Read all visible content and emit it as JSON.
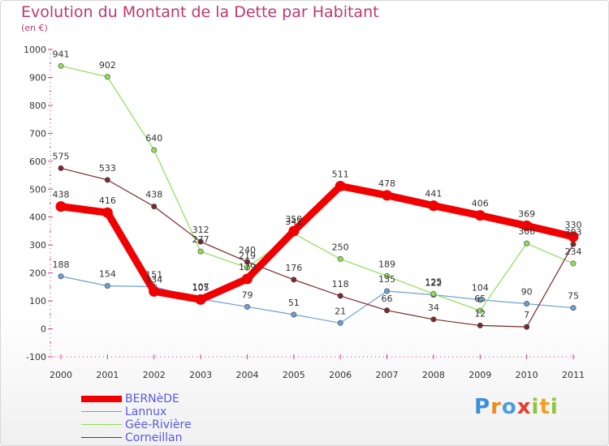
{
  "header": {
    "title": "Evolution du Montant de la Dette par Habitant",
    "subtitle": "(en €)"
  },
  "logo": {
    "text": "Proxiti",
    "colors": [
      "#3a8fd8",
      "#f08a1c",
      "#4a9ede",
      "#e83e2c",
      "#8cc63e",
      "#f0a020"
    ]
  },
  "chart_data": {
    "type": "line",
    "title": "Evolution du Montant de la Dette par Habitant",
    "ylabel": "(en €)",
    "xlabel": "",
    "x": [
      "2000",
      "2001",
      "2002",
      "2003",
      "2004",
      "2005",
      "2006",
      "2007",
      "2008",
      "2009",
      "2010",
      "2011"
    ],
    "yticks": [
      "-100",
      "0",
      "100",
      "200",
      "300",
      "400",
      "500",
      "600",
      "700",
      "800",
      "900",
      "1000"
    ],
    "ylim": [
      -100,
      1000
    ],
    "grid": false,
    "legend_position": "bottom-left",
    "series": [
      {
        "name": "BERNèDE",
        "color": "#f00000",
        "emphasis": true,
        "values": [
          438,
          416,
          134,
          105,
          179,
          350,
          511,
          478,
          441,
          406,
          369,
          330
        ],
        "labels": [
          "438",
          "416",
          "134",
          "105",
          "179",
          "350",
          "511",
          "478",
          "441",
          "406",
          "369",
          "330"
        ]
      },
      {
        "name": "Lannux",
        "color": "#6a9fd4",
        "emphasis": false,
        "values": [
          188,
          154,
          151,
          107,
          79,
          51,
          21,
          135,
          122,
          104,
          90,
          75
        ],
        "labels": [
          "188",
          "154",
          "151",
          "107",
          "79",
          "51",
          "21",
          "135",
          "122",
          "104",
          "90",
          "75"
        ]
      },
      {
        "name": "Gée-Rivière",
        "color": "#8fdc5a",
        "emphasis": false,
        "values": [
          941,
          902,
          640,
          277,
          219,
          341,
          250,
          189,
          125,
          65,
          306,
          234
        ],
        "labels": [
          "941",
          "902",
          "640",
          "277",
          "219",
          "341",
          "250",
          "189",
          "125",
          "65",
          "306",
          "234"
        ]
      },
      {
        "name": "Corneillan",
        "color": "#7a2a2a",
        "emphasis": false,
        "values": [
          575,
          533,
          438,
          312,
          240,
          176,
          118,
          66,
          34,
          12,
          7,
          303
        ],
        "labels": [
          "575",
          "533",
          "438",
          "312",
          "240",
          "176",
          "118",
          "66",
          "34",
          "12",
          "7",
          "303"
        ]
      }
    ]
  }
}
